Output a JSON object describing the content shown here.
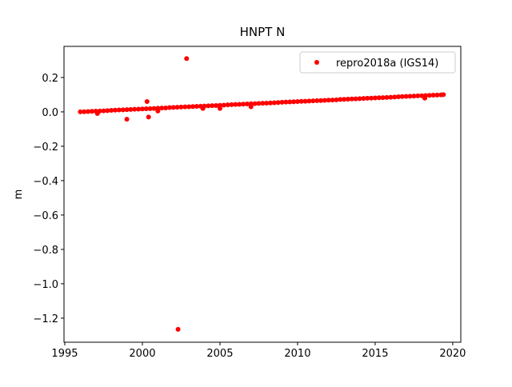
{
  "chart_data": {
    "type": "scatter",
    "title": "HNPT N",
    "y_label": "m",
    "xlim": [
      1994.95,
      2020.52
    ],
    "ylim": [
      -1.34,
      0.381
    ],
    "xticks": [
      1995,
      2000,
      2005,
      2010,
      2015,
      2020
    ],
    "yticks": [
      {
        "value": -1.2,
        "label": "−1.2"
      },
      {
        "value": -1.0,
        "label": "−1.0"
      },
      {
        "value": -0.8,
        "label": "−0.8"
      },
      {
        "value": -0.6,
        "label": "−0.6"
      },
      {
        "value": -0.4,
        "label": "−0.4"
      },
      {
        "value": -0.2,
        "label": "−0.2"
      },
      {
        "value": 0.0,
        "label": "0.0"
      },
      0.2
    ],
    "legend": "upper right",
    "series": [
      {
        "name": "repro2018a (IGS14)",
        "color": "#ff0000",
        "x": [
          1996,
          1996.25,
          1996.5,
          1996.75,
          1997,
          1997.25,
          1997.5,
          1997.75,
          1998,
          1998.25,
          1998.5,
          1998.75,
          1999,
          1999.25,
          1999.5,
          1999.75,
          2000,
          2000.25,
          2000.5,
          2000.75,
          2001,
          2001.25,
          2001.5,
          2001.75,
          2002,
          2002.25,
          2002.5,
          2002.75,
          2003,
          2003.25,
          2003.5,
          2003.75,
          2004,
          2004.25,
          2004.5,
          2004.75,
          2005,
          2005.25,
          2005.5,
          2005.75,
          2006,
          2006.25,
          2006.5,
          2006.75,
          2007,
          2007.25,
          2007.5,
          2007.75,
          2008,
          2008.25,
          2008.5,
          2008.75,
          2009,
          2009.25,
          2009.5,
          2009.75,
          2010,
          2010.25,
          2010.5,
          2010.75,
          2011,
          2011.25,
          2011.5,
          2011.75,
          2012,
          2012.25,
          2012.5,
          2012.75,
          2013,
          2013.25,
          2013.5,
          2013.75,
          2014,
          2014.25,
          2014.5,
          2014.75,
          2015,
          2015.25,
          2015.5,
          2015.75,
          2016,
          2016.25,
          2016.5,
          2016.75,
          2017,
          2017.25,
          2017.5,
          2017.75,
          2018,
          2018.25,
          2018.5,
          2018.75,
          2019,
          2019.25,
          2019.4,
          2002.85,
          2002.3,
          1999.0,
          2000.4,
          2000.3,
          1997.1,
          2003.9,
          2007.0,
          2005.0,
          2018.2,
          2001.0
        ],
        "values": [
          0.0,
          0.001,
          0.002,
          0.003,
          0.004,
          0.005,
          0.006,
          0.007,
          0.009,
          0.01,
          0.011,
          0.012,
          0.013,
          0.014,
          0.015,
          0.016,
          0.017,
          0.018,
          0.019,
          0.02,
          0.021,
          0.022,
          0.023,
          0.025,
          0.026,
          0.027,
          0.028,
          0.029,
          0.03,
          0.031,
          0.032,
          0.033,
          0.034,
          0.035,
          0.036,
          0.037,
          0.038,
          0.039,
          0.041,
          0.042,
          0.043,
          0.044,
          0.045,
          0.046,
          0.047,
          0.048,
          0.049,
          0.05,
          0.051,
          0.052,
          0.053,
          0.054,
          0.056,
          0.057,
          0.058,
          0.059,
          0.06,
          0.061,
          0.062,
          0.063,
          0.064,
          0.065,
          0.066,
          0.067,
          0.068,
          0.069,
          0.07,
          0.072,
          0.073,
          0.074,
          0.075,
          0.076,
          0.077,
          0.078,
          0.079,
          0.08,
          0.081,
          0.082,
          0.083,
          0.084,
          0.085,
          0.086,
          0.088,
          0.089,
          0.09,
          0.091,
          0.092,
          0.093,
          0.094,
          0.095,
          0.096,
          0.097,
          0.098,
          0.099,
          0.1,
          0.31,
          -1.265,
          -0.043,
          -0.03,
          0.06,
          -0.01,
          0.02,
          0.03,
          0.02,
          0.08,
          0.005
        ]
      }
    ]
  }
}
